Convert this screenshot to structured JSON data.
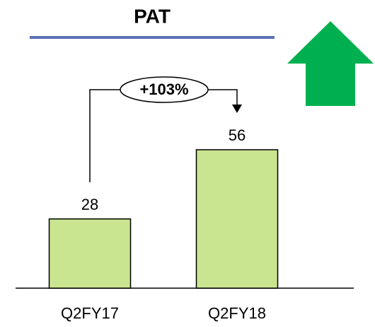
{
  "chart_data": {
    "type": "bar",
    "title": "PAT",
    "categories": [
      "Q2FY17",
      "Q2FY18"
    ],
    "values": [
      28,
      56
    ],
    "color": "#c9e590",
    "ylim": [
      0,
      70
    ],
    "annotation": "+103%"
  }
}
